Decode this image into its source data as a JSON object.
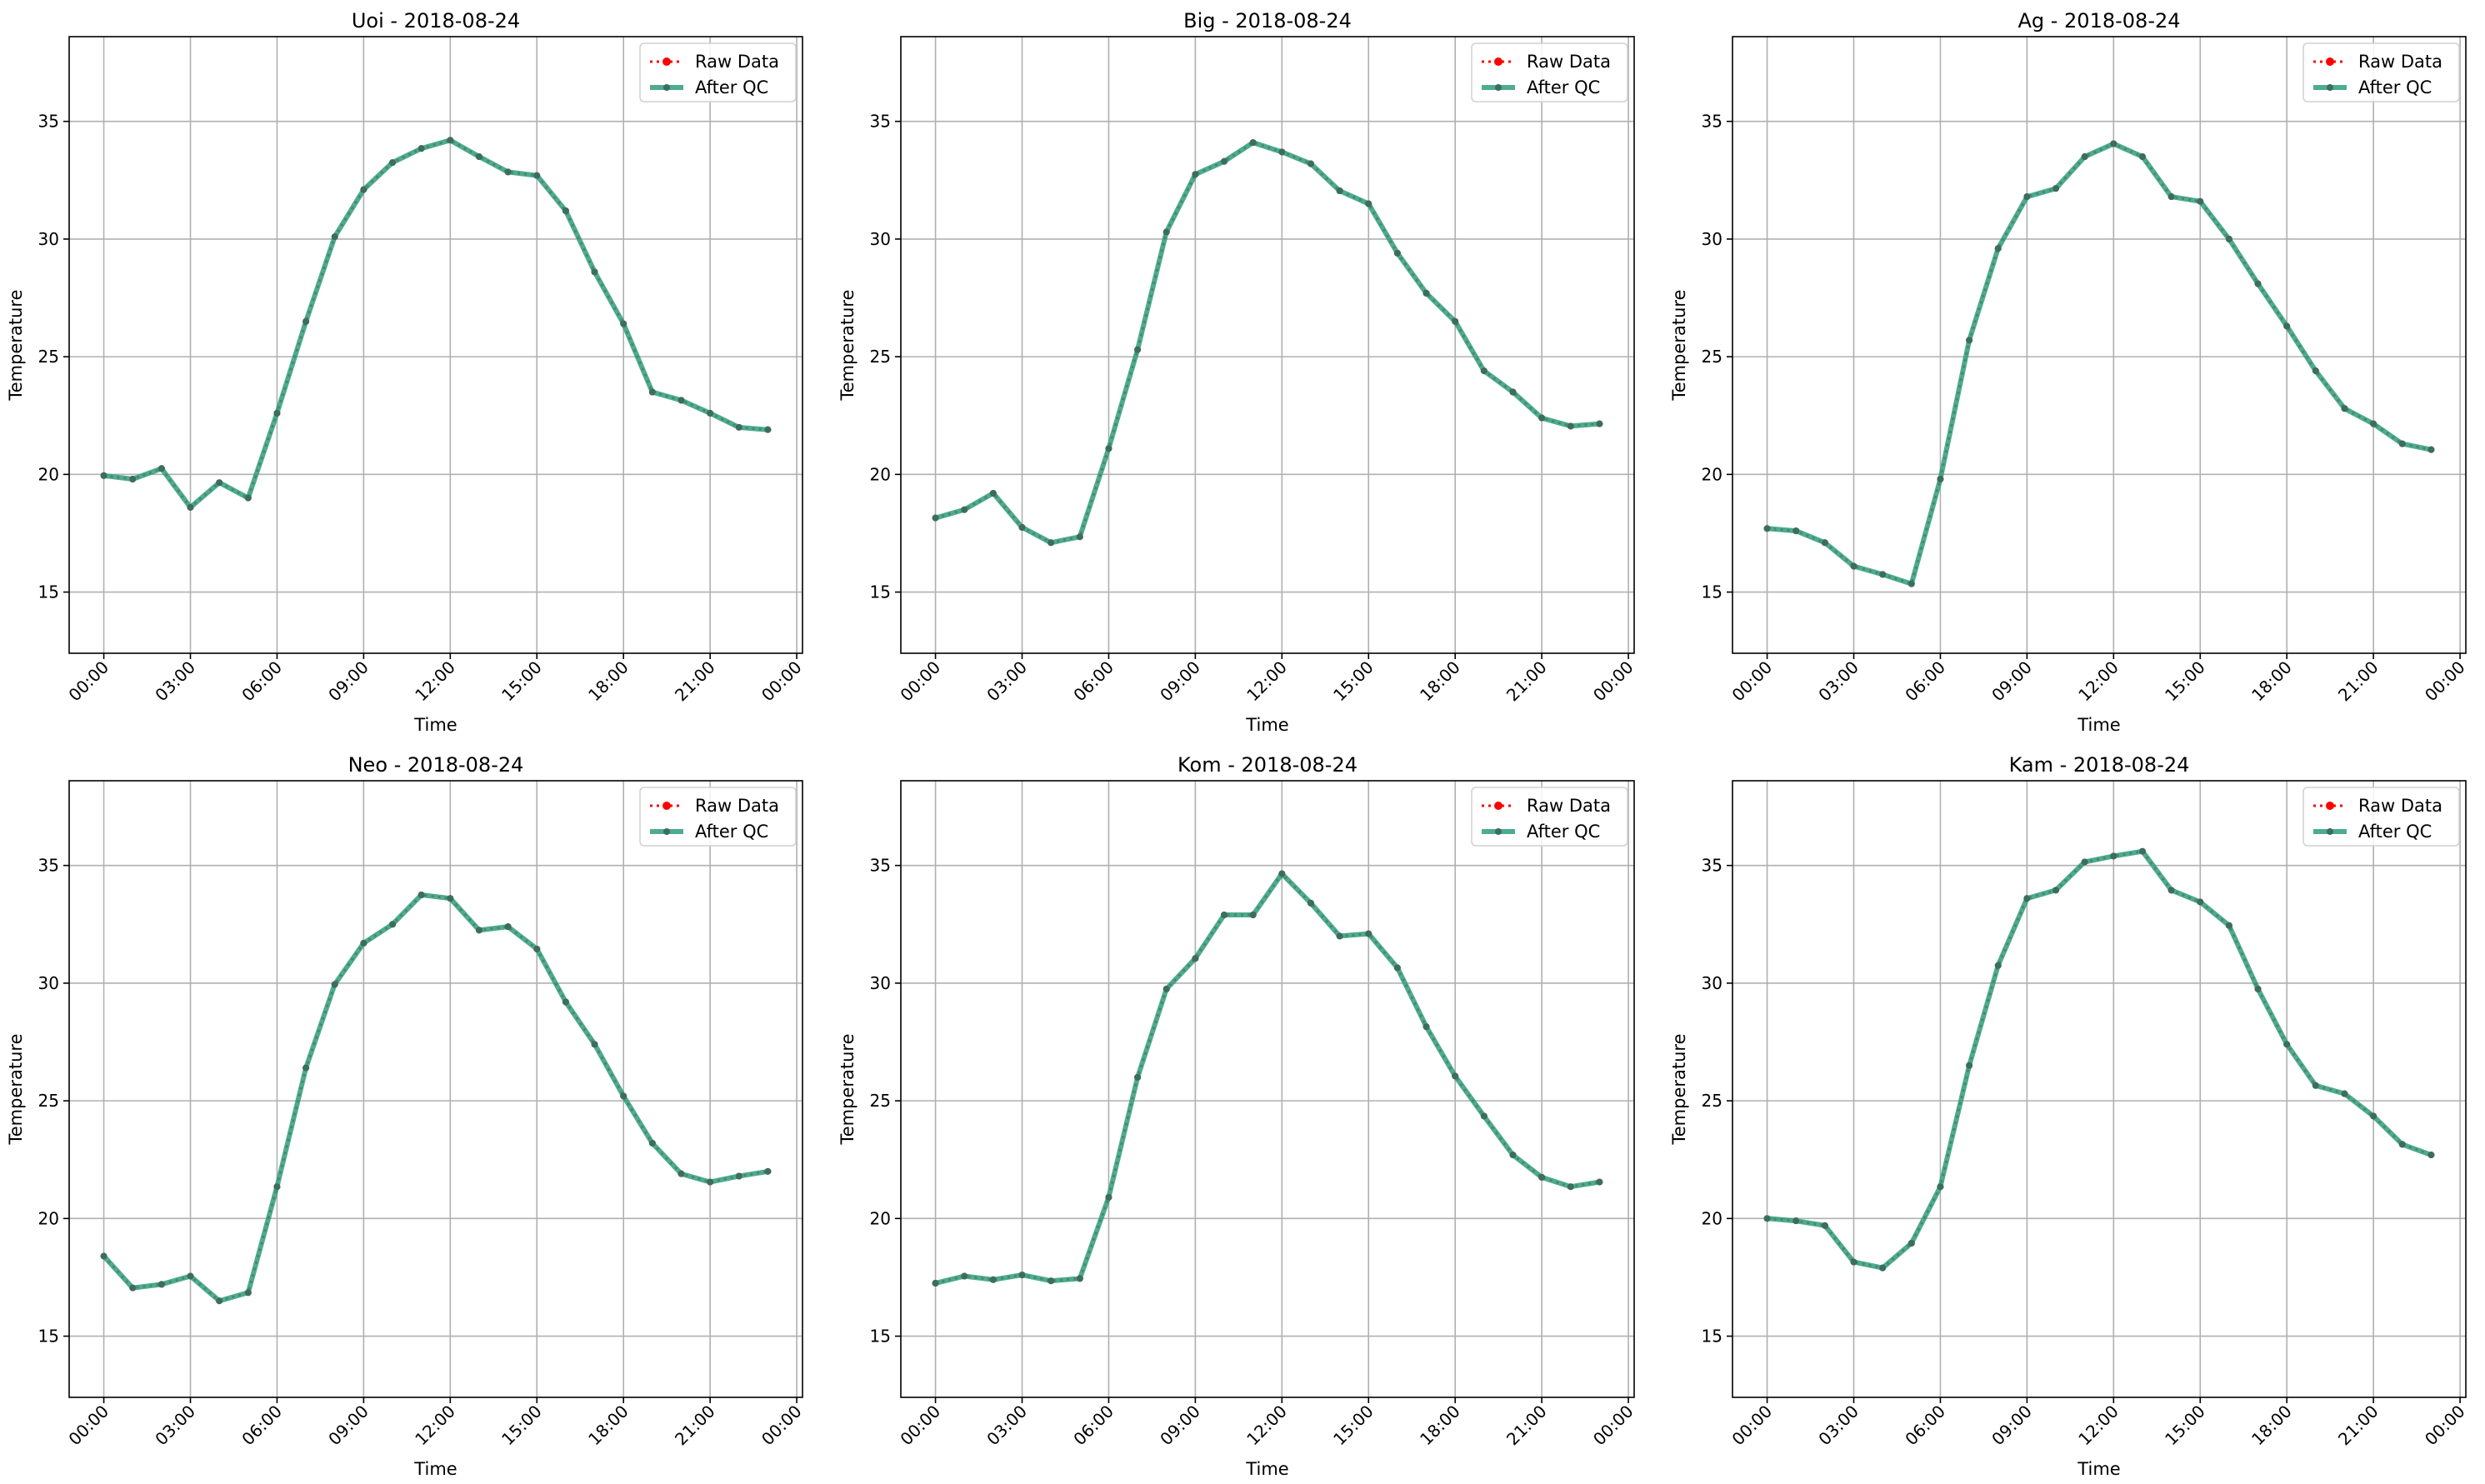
{
  "chart_data": [
    {
      "type": "line",
      "title": "Uoi - 2018-08-24",
      "xlabel": "Time",
      "ylabel": "Temperature",
      "x_tick_labels": [
        "00:00",
        "03:00",
        "06:00",
        "09:00",
        "12:00",
        "15:00",
        "18:00",
        "21:00",
        "00:00"
      ],
      "y_ticks": [
        15,
        20,
        25,
        30,
        35
      ],
      "xlim_hours": [
        -1.2,
        24.2
      ],
      "ylim": [
        12.4,
        38.6
      ],
      "grid": true,
      "legend": {
        "position": "top-right",
        "entries": [
          "Raw Data",
          "After QC"
        ]
      },
      "x": [
        0,
        1,
        2,
        3,
        4,
        5,
        6,
        7,
        8,
        9,
        10,
        11,
        12,
        13,
        14,
        15,
        16,
        17,
        18,
        19,
        20,
        21,
        22,
        23
      ],
      "series": [
        {
          "name": "Raw Data",
          "values": [
            19.95,
            19.8,
            20.25,
            18.6,
            19.65,
            19.0,
            22.6,
            26.5,
            30.1,
            32.1,
            33.25,
            33.85,
            34.2,
            33.5,
            32.85,
            32.7,
            31.2,
            28.6,
            26.4,
            23.5,
            23.15,
            22.6,
            22.0,
            21.9
          ]
        },
        {
          "name": "After QC",
          "values": [
            19.95,
            19.8,
            20.25,
            18.6,
            19.65,
            19.0,
            22.6,
            26.5,
            30.1,
            32.1,
            33.25,
            33.85,
            34.2,
            33.5,
            32.85,
            32.7,
            31.2,
            28.6,
            26.4,
            23.5,
            23.15,
            22.6,
            22.0,
            21.9
          ]
        }
      ]
    },
    {
      "type": "line",
      "title": "Big - 2018-08-24",
      "xlabel": "Time",
      "ylabel": "Temperature",
      "x_tick_labels": [
        "00:00",
        "03:00",
        "06:00",
        "09:00",
        "12:00",
        "15:00",
        "18:00",
        "21:00",
        "00:00"
      ],
      "y_ticks": [
        15,
        20,
        25,
        30,
        35
      ],
      "xlim_hours": [
        -1.2,
        24.2
      ],
      "ylim": [
        12.4,
        38.6
      ],
      "grid": true,
      "legend": {
        "position": "top-right",
        "entries": [
          "Raw Data",
          "After QC"
        ]
      },
      "x": [
        0,
        1,
        2,
        3,
        4,
        5,
        6,
        7,
        8,
        9,
        10,
        11,
        12,
        13,
        14,
        15,
        16,
        17,
        18,
        19,
        20,
        21,
        22,
        23
      ],
      "series": [
        {
          "name": "Raw Data",
          "values": [
            18.15,
            18.5,
            19.2,
            17.75,
            17.1,
            17.35,
            21.1,
            25.3,
            30.3,
            32.75,
            33.3,
            34.1,
            33.7,
            33.2,
            32.05,
            31.5,
            29.4,
            27.7,
            26.5,
            24.4,
            23.5,
            22.4,
            22.05,
            22.15
          ]
        },
        {
          "name": "After QC",
          "values": [
            18.15,
            18.5,
            19.2,
            17.75,
            17.1,
            17.35,
            21.1,
            25.3,
            30.3,
            32.75,
            33.3,
            34.1,
            33.7,
            33.2,
            32.05,
            31.5,
            29.4,
            27.7,
            26.5,
            24.4,
            23.5,
            22.4,
            22.05,
            22.15
          ]
        }
      ]
    },
    {
      "type": "line",
      "title": "Ag - 2018-08-24",
      "xlabel": "Time",
      "ylabel": "Temperature",
      "x_tick_labels": [
        "00:00",
        "03:00",
        "06:00",
        "09:00",
        "12:00",
        "15:00",
        "18:00",
        "21:00",
        "00:00"
      ],
      "y_ticks": [
        15,
        20,
        25,
        30,
        35
      ],
      "xlim_hours": [
        -1.2,
        24.2
      ],
      "ylim": [
        12.4,
        38.6
      ],
      "grid": true,
      "legend": {
        "position": "top-right",
        "entries": [
          "Raw Data",
          "After QC"
        ]
      },
      "x": [
        0,
        1,
        2,
        3,
        4,
        5,
        6,
        7,
        8,
        9,
        10,
        11,
        12,
        13,
        14,
        15,
        16,
        17,
        18,
        19,
        20,
        21,
        22,
        23
      ],
      "series": [
        {
          "name": "Raw Data",
          "values": [
            17.7,
            17.6,
            17.1,
            16.1,
            15.75,
            15.35,
            19.8,
            25.7,
            29.6,
            31.8,
            32.15,
            33.5,
            34.05,
            33.5,
            31.8,
            31.6,
            30.0,
            28.1,
            26.3,
            24.4,
            22.8,
            22.15,
            21.3,
            21.05
          ]
        },
        {
          "name": "After QC",
          "values": [
            17.7,
            17.6,
            17.1,
            16.1,
            15.75,
            15.35,
            19.8,
            25.7,
            29.6,
            31.8,
            32.15,
            33.5,
            34.05,
            33.5,
            31.8,
            31.6,
            30.0,
            28.1,
            26.3,
            24.4,
            22.8,
            22.15,
            21.3,
            21.05
          ]
        }
      ]
    },
    {
      "type": "line",
      "title": "Neo - 2018-08-24",
      "xlabel": "Time",
      "ylabel": "Temperature",
      "x_tick_labels": [
        "00:00",
        "03:00",
        "06:00",
        "09:00",
        "12:00",
        "15:00",
        "18:00",
        "21:00",
        "00:00"
      ],
      "y_ticks": [
        15,
        20,
        25,
        30,
        35
      ],
      "xlim_hours": [
        -1.2,
        24.2
      ],
      "ylim": [
        12.4,
        38.6
      ],
      "grid": true,
      "legend": {
        "position": "top-right",
        "entries": [
          "Raw Data",
          "After QC"
        ]
      },
      "x": [
        0,
        1,
        2,
        3,
        4,
        5,
        6,
        7,
        8,
        9,
        10,
        11,
        12,
        13,
        14,
        15,
        16,
        17,
        18,
        19,
        20,
        21,
        22,
        23
      ],
      "series": [
        {
          "name": "Raw Data",
          "values": [
            18.4,
            17.05,
            17.2,
            17.55,
            16.5,
            16.85,
            21.35,
            26.4,
            29.95,
            31.7,
            32.5,
            33.75,
            33.6,
            32.25,
            32.4,
            31.45,
            29.2,
            27.4,
            25.2,
            23.2,
            21.9,
            21.55,
            21.8,
            22.0
          ]
        },
        {
          "name": "After QC",
          "values": [
            18.4,
            17.05,
            17.2,
            17.55,
            16.5,
            16.85,
            21.35,
            26.4,
            29.95,
            31.7,
            32.5,
            33.75,
            33.6,
            32.25,
            32.4,
            31.45,
            29.2,
            27.4,
            25.2,
            23.2,
            21.9,
            21.55,
            21.8,
            22.0
          ]
        }
      ]
    },
    {
      "type": "line",
      "title": "Kom - 2018-08-24",
      "xlabel": "Time",
      "ylabel": "Temperature",
      "x_tick_labels": [
        "00:00",
        "03:00",
        "06:00",
        "09:00",
        "12:00",
        "15:00",
        "18:00",
        "21:00",
        "00:00"
      ],
      "y_ticks": [
        15,
        20,
        25,
        30,
        35
      ],
      "xlim_hours": [
        -1.2,
        24.2
      ],
      "ylim": [
        12.4,
        38.6
      ],
      "grid": true,
      "legend": {
        "position": "top-right",
        "entries": [
          "Raw Data",
          "After QC"
        ]
      },
      "x": [
        0,
        1,
        2,
        3,
        4,
        5,
        6,
        7,
        8,
        9,
        10,
        11,
        12,
        13,
        14,
        15,
        16,
        17,
        18,
        19,
        20,
        21,
        22,
        23
      ],
      "series": [
        {
          "name": "Raw Data",
          "values": [
            17.25,
            17.55,
            17.4,
            17.6,
            17.35,
            17.45,
            20.9,
            26.0,
            29.75,
            31.05,
            32.9,
            32.9,
            34.65,
            33.4,
            32.0,
            32.1,
            30.65,
            28.15,
            26.05,
            24.35,
            22.7,
            21.75,
            21.35,
            21.55
          ]
        },
        {
          "name": "After QC",
          "values": [
            17.25,
            17.55,
            17.4,
            17.6,
            17.35,
            17.45,
            20.9,
            26.0,
            29.75,
            31.05,
            32.9,
            32.9,
            34.65,
            33.4,
            32.0,
            32.1,
            30.65,
            28.15,
            26.05,
            24.35,
            22.7,
            21.75,
            21.35,
            21.55
          ]
        }
      ]
    },
    {
      "type": "line",
      "title": "Kam - 2018-08-24",
      "xlabel": "Time",
      "ylabel": "Temperature",
      "x_tick_labels": [
        "00:00",
        "03:00",
        "06:00",
        "09:00",
        "12:00",
        "15:00",
        "18:00",
        "21:00",
        "00:00"
      ],
      "y_ticks": [
        15,
        20,
        25,
        30,
        35
      ],
      "xlim_hours": [
        -1.2,
        24.2
      ],
      "ylim": [
        12.4,
        38.6
      ],
      "grid": true,
      "legend": {
        "position": "top-right",
        "entries": [
          "Raw Data",
          "After QC"
        ]
      },
      "x": [
        0,
        1,
        2,
        3,
        4,
        5,
        6,
        7,
        8,
        9,
        10,
        11,
        12,
        13,
        14,
        15,
        16,
        17,
        18,
        19,
        20,
        21,
        22,
        23
      ],
      "series": [
        {
          "name": "Raw Data",
          "values": [
            20.0,
            19.9,
            19.7,
            18.15,
            17.9,
            18.95,
            21.35,
            26.5,
            30.75,
            33.6,
            33.95,
            35.15,
            35.4,
            35.6,
            33.95,
            33.45,
            32.45,
            29.75,
            27.4,
            25.65,
            25.3,
            24.35,
            23.15,
            22.7
          ]
        },
        {
          "name": "After QC",
          "values": [
            20.0,
            19.9,
            19.7,
            18.15,
            17.9,
            18.95,
            21.35,
            26.5,
            30.75,
            33.6,
            33.95,
            35.15,
            35.4,
            35.6,
            33.95,
            33.45,
            32.45,
            29.75,
            27.4,
            25.65,
            25.3,
            24.35,
            23.15,
            22.7
          ]
        }
      ]
    }
  ],
  "colors": {
    "raw": "#ff0000",
    "qc": "#2e9e7c",
    "qc_marker": "#3a6e5e",
    "grid": "#b0b0b0",
    "axes": "#000000",
    "legend_border": "#d0d0d0"
  }
}
